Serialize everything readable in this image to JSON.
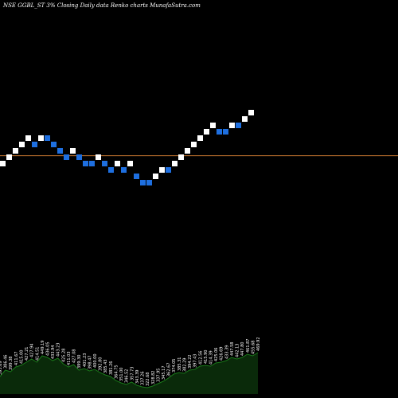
{
  "header": {
    "title": "NSE GGBL_ST 3% Closing Daily data Renko charts MunafaSutra.com"
  },
  "colors": {
    "background": "#000000",
    "up_brick": "#ffffff",
    "down_brick": "#1e6fe0",
    "reference_line": "#c87830",
    "volume_fill": "#0a2a0a",
    "volume_line": "#1a7a1a"
  },
  "chart_data": {
    "type": "renko",
    "brick_levels": [
      0,
      1,
      2,
      3,
      4,
      3,
      4,
      4,
      3,
      2,
      1,
      2,
      1,
      0,
      0,
      1,
      0,
      -1,
      0,
      -1,
      0,
      -2,
      -3,
      -3,
      -2,
      -1,
      -1,
      0,
      1,
      2,
      3,
      4,
      5,
      6,
      5,
      5,
      6,
      6,
      7,
      8
    ],
    "brick_directions": [
      "up",
      "up",
      "up",
      "up",
      "up",
      "down",
      "up",
      "down",
      "down",
      "down",
      "down",
      "up",
      "down",
      "down",
      "down",
      "up",
      "down",
      "down",
      "up",
      "down",
      "up",
      "down",
      "down",
      "down",
      "up",
      "up",
      "down",
      "up",
      "up",
      "up",
      "up",
      "up",
      "up",
      "up",
      "down",
      "down",
      "up",
      "down",
      "up",
      "up"
    ],
    "reference_level": 1.3,
    "volume_labels": [
      "395.69",
      "386.46",
      "399.38",
      "411.67",
      "415.00",
      "427.21",
      "427.94",
      "414.51",
      "449.19",
      "436.05",
      "433.94",
      "443.23",
      "425.28",
      "411.03",
      "427.08",
      "399.30",
      "401.23",
      "398.47",
      "400.00",
      "392.80",
      "385.43",
      "381.26",
      "364.75",
      "351.00",
      "346.52",
      "357.73",
      "343.39",
      "337.26",
      "322.68",
      "328.82",
      "337.95",
      "345.17",
      "362.67",
      "374.05",
      "385.31",
      "382.29",
      "394.22",
      "397.43",
      "412.56",
      "415.90",
      "414.39",
      "425.06",
      "426.69",
      "433.39",
      "447.58",
      "442.13",
      "447.80",
      "461.87",
      "455.68",
      "469.92"
    ],
    "volume_values": [
      22,
      30,
      28,
      34,
      36,
      40,
      44,
      40,
      48,
      46,
      42,
      45,
      38,
      34,
      37,
      30,
      32,
      29,
      31,
      27,
      24,
      22,
      17,
      14,
      12,
      15,
      11,
      9,
      8,
      10,
      13,
      16,
      20,
      25,
      27,
      26,
      30,
      31,
      35,
      36,
      35,
      39,
      40,
      42,
      46,
      44,
      46,
      50,
      48,
      52
    ]
  }
}
